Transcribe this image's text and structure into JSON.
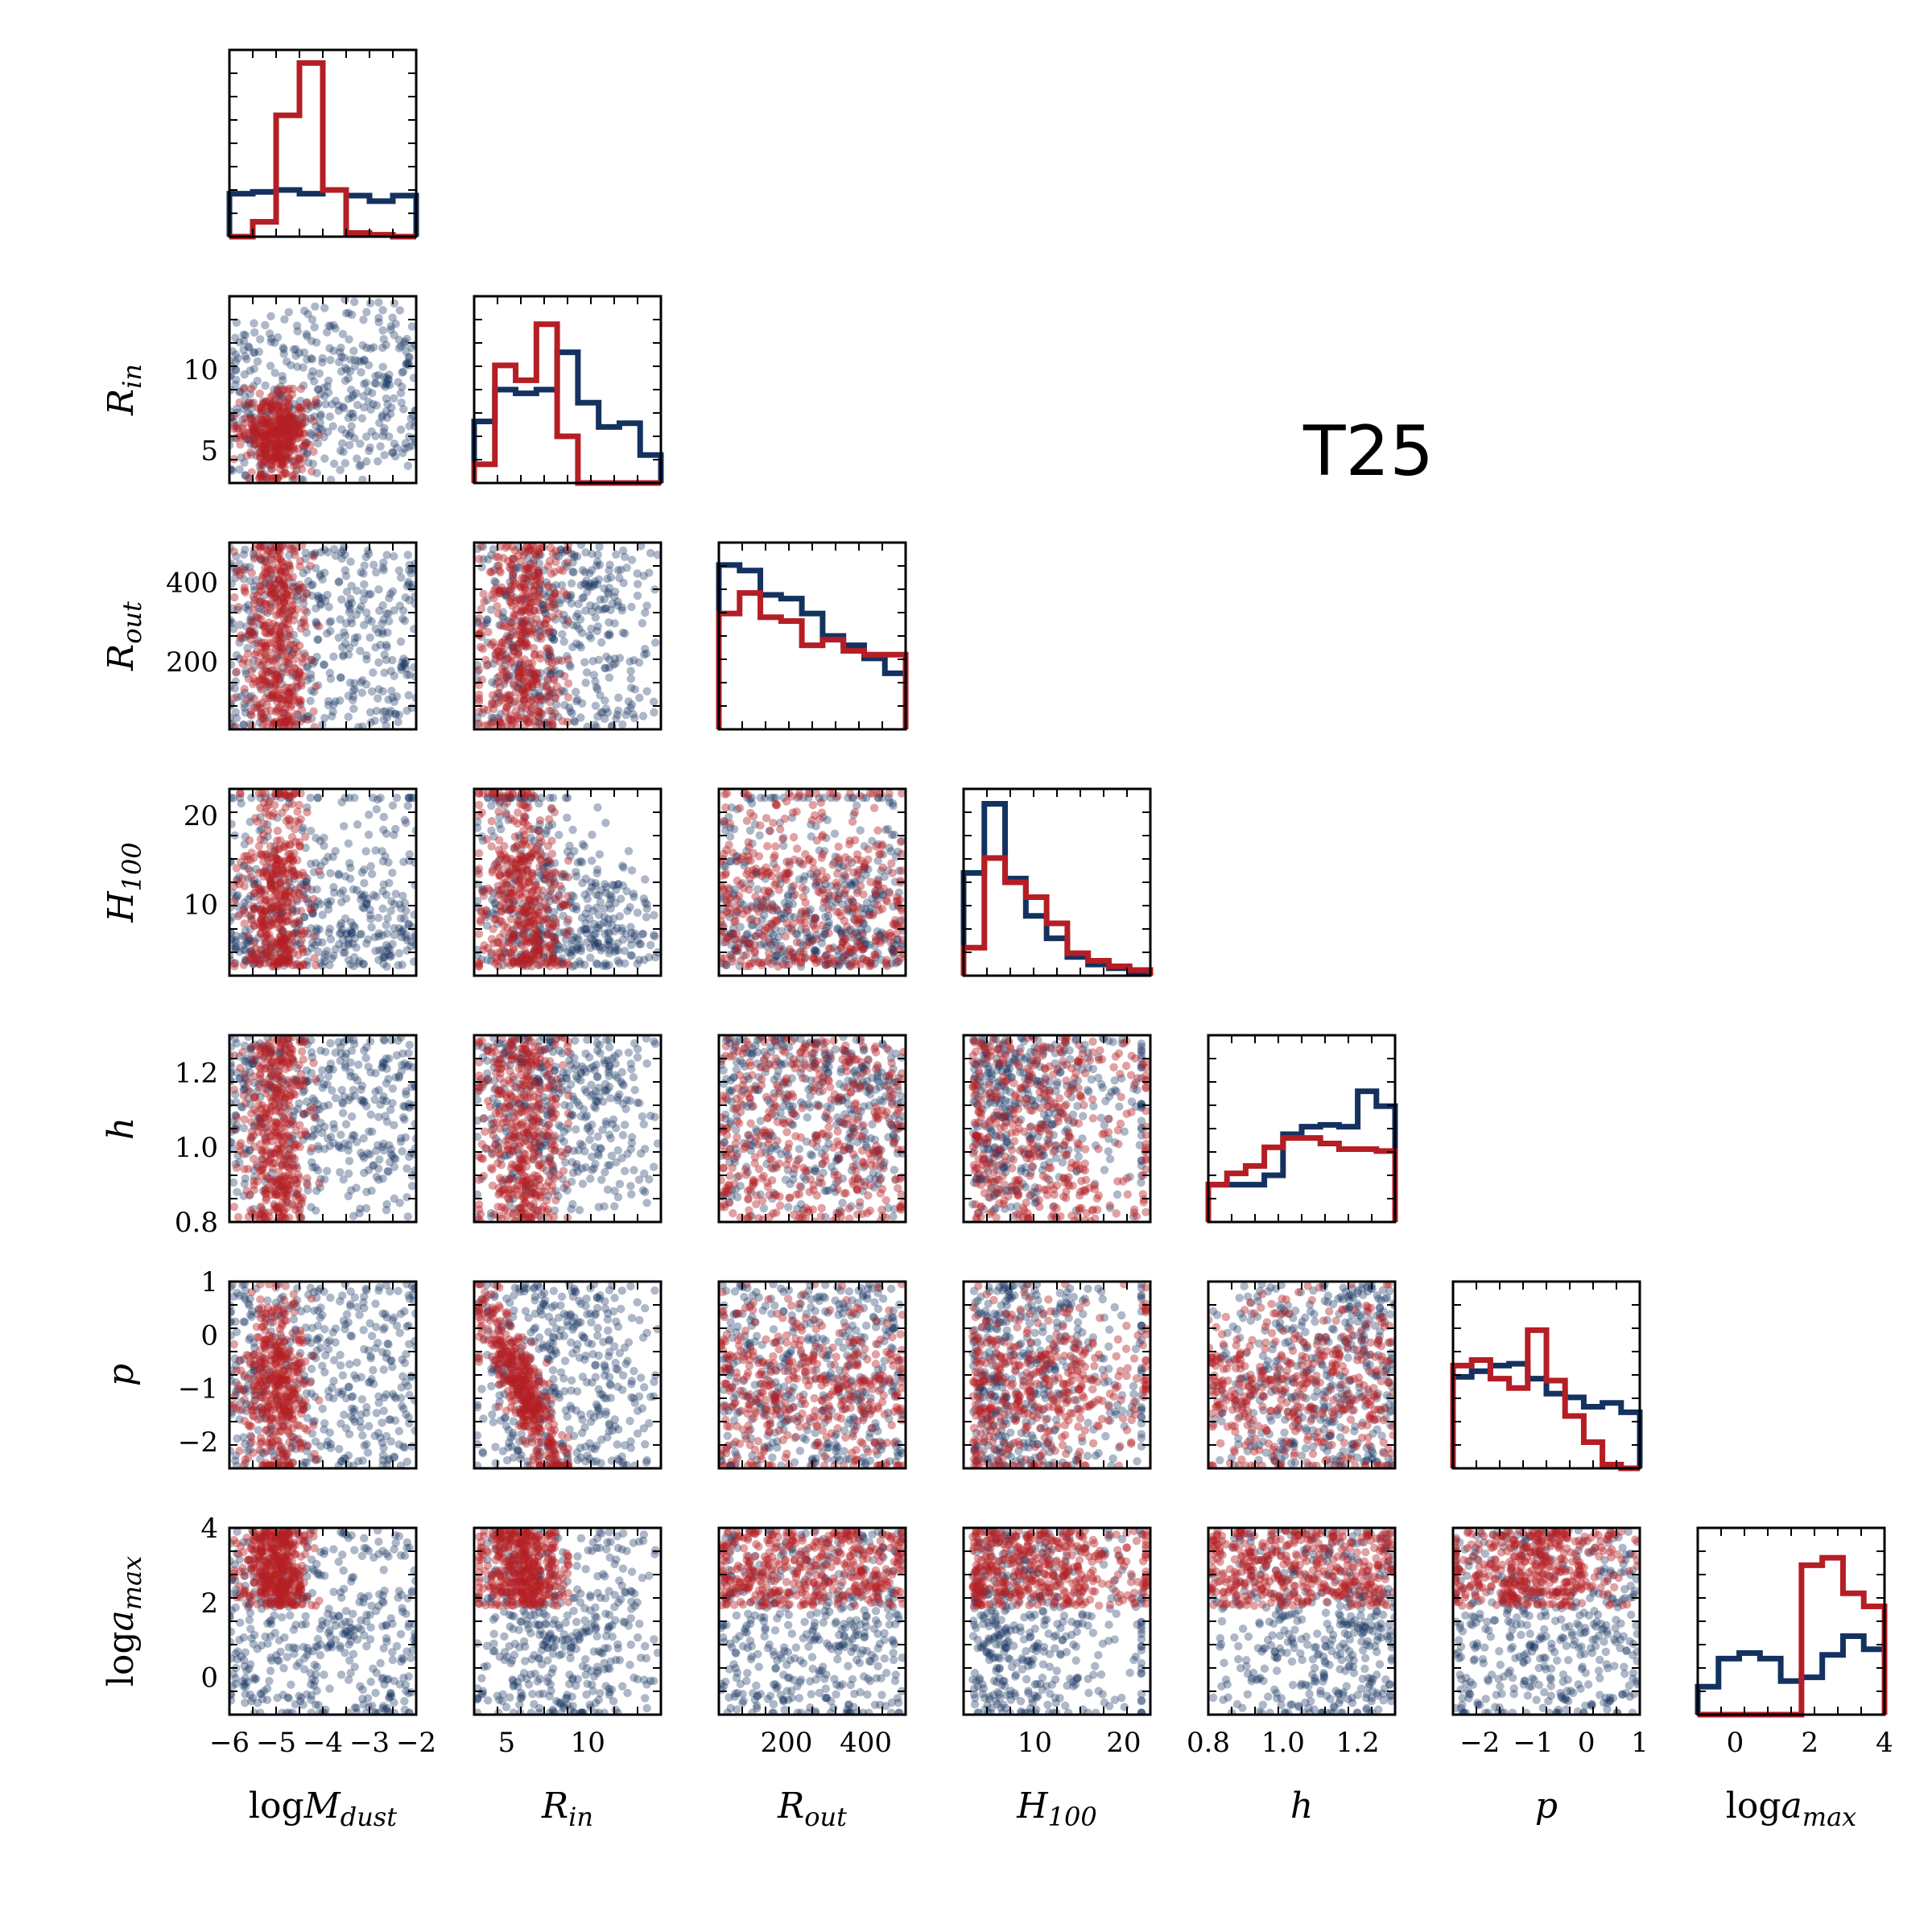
{
  "chart_data": {
    "type": "scatter",
    "title": "T25",
    "colors": {
      "blue": "#14325f",
      "red": "#b41e24",
      "overlap": "#6b2326"
    },
    "parameters": [
      {
        "key": "logMdust",
        "label": "logM",
        "sub": "dust",
        "range": [
          -6,
          -2
        ],
        "ticks": [
          -6,
          -5,
          -4,
          -3,
          -2
        ]
      },
      {
        "key": "Rin",
        "label": "R",
        "sub": "in",
        "range": [
          3.0,
          14.5
        ],
        "ticks": [
          5,
          10
        ]
      },
      {
        "key": "Rout",
        "label": "R",
        "sub": "out",
        "range": [
          30,
          500
        ],
        "ticks": [
          200,
          400
        ]
      },
      {
        "key": "H100",
        "label": "H",
        "sub": "100",
        "range": [
          2.0,
          23.0
        ],
        "ticks": [
          10,
          20
        ]
      },
      {
        "key": "h",
        "label": "h",
        "sub": "",
        "range": [
          0.8,
          1.3
        ],
        "ticks": [
          0.8,
          1.0,
          1.2
        ]
      },
      {
        "key": "p",
        "label": "p",
        "sub": "",
        "range": [
          -2.5,
          1.0
        ],
        "ticks": [
          -2,
          -1,
          0,
          1
        ]
      },
      {
        "key": "logamax",
        "label": "loga",
        "sub": "max",
        "range": [
          -1.0,
          4.0
        ],
        "ticks": [
          0,
          2,
          4
        ]
      }
    ],
    "tick_text": {
      "logMdust": [
        "−6",
        "−5",
        "−4",
        "−3",
        "−2"
      ],
      "Rin": [
        "5",
        "10"
      ],
      "Rout": [
        "200",
        "400"
      ],
      "H100": [
        "10",
        "20"
      ],
      "h": [
        "0.8",
        "1.0",
        "1.2"
      ],
      "p": [
        "−2",
        "−1",
        "0",
        "1"
      ],
      "logamax": [
        "0",
        "2",
        "4"
      ]
    },
    "histograms": [
      {
        "param": "logMdust",
        "blue": [
          0.23,
          0.24,
          0.25,
          0.23,
          0.25,
          0.22,
          0.19,
          0.22
        ],
        "red": [
          0.0,
          0.08,
          0.65,
          0.93,
          0.25,
          0.02,
          0.01,
          0.0
        ]
      },
      {
        "param": "Rin",
        "blue": [
          0.33,
          0.5,
          0.48,
          0.5,
          0.7,
          0.43,
          0.3,
          0.32,
          0.15
        ],
        "red": [
          0.1,
          0.63,
          0.55,
          0.85,
          0.25,
          0.0,
          0.0,
          0.0,
          0.0
        ]
      },
      {
        "param": "Rout",
        "blue": [
          0.88,
          0.85,
          0.72,
          0.7,
          0.62,
          0.5,
          0.45,
          0.38,
          0.3
        ],
        "red": [
          0.62,
          0.73,
          0.6,
          0.58,
          0.45,
          0.48,
          0.42,
          0.4,
          0.4
        ]
      },
      {
        "param": "H100",
        "blue": [
          0.55,
          0.92,
          0.52,
          0.32,
          0.2,
          0.1,
          0.06,
          0.04,
          0.02
        ],
        "red": [
          0.15,
          0.63,
          0.5,
          0.42,
          0.28,
          0.12,
          0.08,
          0.05,
          0.03
        ]
      },
      {
        "param": "h",
        "blue": [
          0.2,
          0.2,
          0.2,
          0.25,
          0.47,
          0.51,
          0.52,
          0.51,
          0.7,
          0.62
        ],
        "red": [
          0.2,
          0.26,
          0.3,
          0.4,
          0.45,
          0.45,
          0.42,
          0.39,
          0.39,
          0.38
        ]
      },
      {
        "param": "p",
        "blue": [
          0.49,
          0.52,
          0.55,
          0.56,
          0.48,
          0.4,
          0.38,
          0.33,
          0.35,
          0.3
        ],
        "red": [
          0.55,
          0.58,
          0.48,
          0.43,
          0.74,
          0.47,
          0.28,
          0.14,
          0.02,
          0.0
        ]
      },
      {
        "param": "logamax",
        "blue": [
          0.15,
          0.3,
          0.33,
          0.3,
          0.18,
          0.2,
          0.32,
          0.42,
          0.35
        ],
        "red": [
          0.0,
          0.0,
          0.0,
          0.0,
          0.0,
          0.8,
          0.84,
          0.65,
          0.58
        ]
      }
    ],
    "grid": false,
    "legend": "none"
  }
}
